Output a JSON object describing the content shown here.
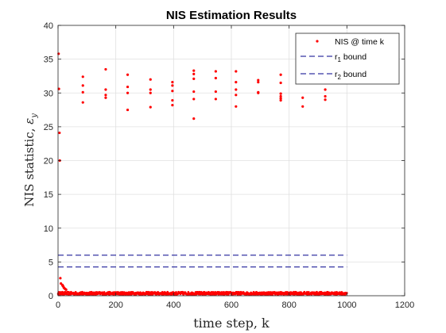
{
  "chart_data": {
    "type": "scatter",
    "title": "NIS Estimation Results",
    "xlabel": "time step, k",
    "ylabel_text": "NIS statistic, ",
    "ylabel_symbol": "ε",
    "ylabel_symbol_sub": "y",
    "xlim": [
      0,
      1200
    ],
    "ylim": [
      0,
      40
    ],
    "xticks": [
      0,
      200,
      400,
      600,
      800,
      1000,
      1200
    ],
    "yticks": [
      0,
      5,
      10,
      15,
      20,
      25,
      30,
      35,
      40
    ],
    "grid": true,
    "legend_position": "top-right",
    "legend": [
      {
        "label": "NIS @ time k",
        "style": "marker",
        "color": "#ff0000"
      },
      {
        "label_main": "r",
        "label_sub": "1",
        "label_rest": " bound",
        "style": "dashed",
        "color": "#00008b"
      },
      {
        "label_main": "r",
        "label_sub": "2",
        "label_rest": " bound",
        "style": "dashed",
        "color": "#00008b"
      }
    ],
    "bounds": [
      {
        "name": "r1 bound",
        "y": 5.99,
        "x": [
          0,
          1000
        ]
      },
      {
        "name": "r2 bound",
        "y": 4.25,
        "x": [
          0,
          1000
        ]
      }
    ],
    "outliers": {
      "x": [
        1,
        2,
        3,
        5,
        6,
        8,
        10,
        15,
        16,
        18,
        20,
        22,
        25,
        28,
        86,
        86,
        86,
        86,
        86,
        86,
        165,
        165,
        165,
        165,
        165,
        241,
        241,
        241,
        241,
        241,
        320,
        320,
        320,
        320,
        320,
        396,
        396,
        396,
        396,
        396,
        470,
        470,
        470,
        470,
        470,
        470,
        546,
        546,
        546,
        546,
        546,
        616,
        616,
        616,
        616,
        616,
        693,
        693,
        693,
        693,
        771,
        771,
        771,
        771,
        771,
        771,
        847,
        847,
        925,
        925,
        925
      ],
      "y": [
        0.3,
        35.8,
        30.6,
        24.1,
        20.0,
        2.6,
        1.8,
        1.6,
        1.5,
        1.4,
        1.2,
        1.1,
        1.0,
        0.9,
        32.4,
        31.1,
        30.1,
        28.6,
        0.3,
        0.2,
        33.5,
        30.5,
        29.7,
        29.3,
        0.2,
        32.7,
        30.9,
        30.0,
        27.5,
        0.2,
        32.0,
        30.5,
        30.0,
        27.9,
        0.2,
        31.6,
        31.1,
        30.3,
        28.9,
        28.2,
        33.3,
        32.8,
        32.1,
        30.2,
        29.1,
        26.2,
        33.2,
        32.2,
        30.2,
        29.1,
        0.2,
        33.2,
        31.6,
        30.5,
        29.7,
        28.0,
        31.9,
        31.6,
        30.1,
        30.0,
        32.7,
        31.5,
        29.9,
        29.5,
        29.2,
        28.9,
        29.3,
        28.0,
        30.5,
        29.5,
        29.0
      ]
    },
    "point_color": "#ff0000",
    "baseline_series": {
      "count": 1000,
      "x_start": 1,
      "x_end": 1000,
      "mean": 0.35,
      "spread": 0.22
    }
  }
}
